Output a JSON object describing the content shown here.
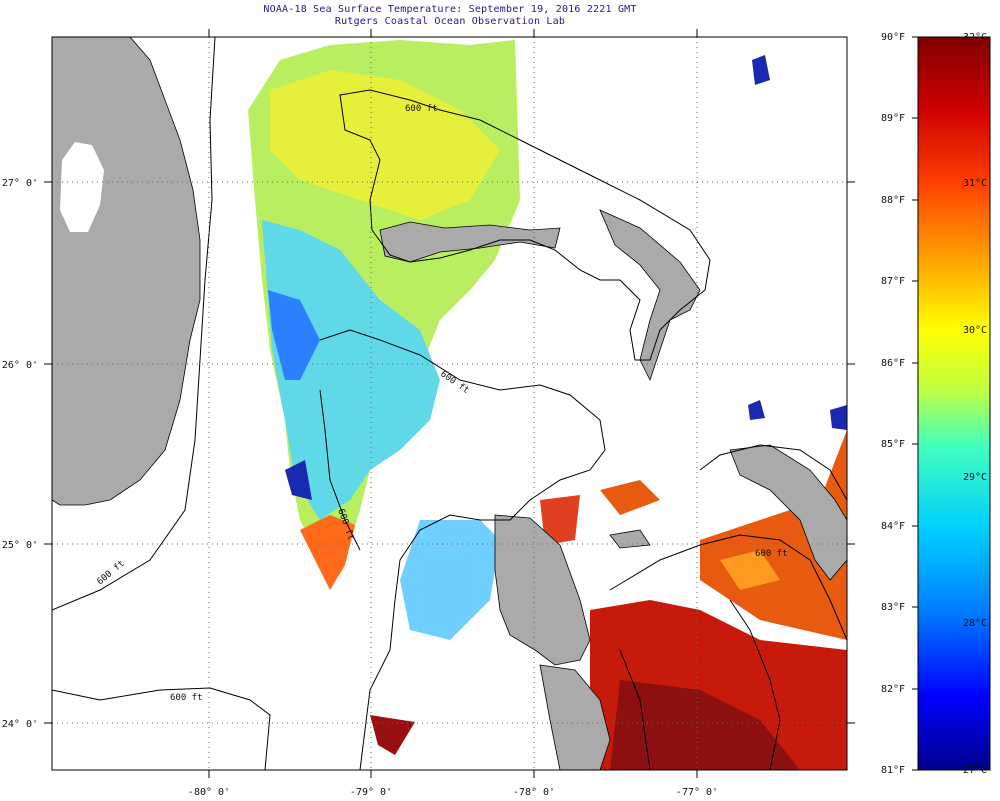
{
  "header": {
    "title": "NOAA-18 Sea Surface Temperature:  September 19, 2016 2221 GMT",
    "subtitle": "Rutgers Coastal Ocean Observation Lab"
  },
  "axes": {
    "lon_labels": [
      "-80° 0'",
      "-79° 0'",
      "-78° 0'",
      "-77° 0'"
    ],
    "lat_labels": [
      "27° 0'",
      "26° 0'",
      "25° 0'",
      "24° 0'"
    ]
  },
  "contour_labels": [
    "600 ft",
    "600 ft",
    "600 ft",
    "600 ft",
    "600 ft",
    "600 ft"
  ],
  "colorbar": {
    "fahrenheit_labels": [
      "90°F",
      "89°F",
      "88°F",
      "87°F",
      "86°F",
      "85°F",
      "84°F",
      "83°F",
      "82°F",
      "81°F"
    ],
    "celsius_labels": [
      "32°C",
      "31°C",
      "30°C",
      "29°C",
      "28°C",
      "27°C"
    ],
    "range_f": [
      81,
      90
    ],
    "range_c": [
      27,
      32
    ],
    "colors": [
      "#00008b",
      "#0000ff",
      "#0080ff",
      "#00d0ff",
      "#40ffc0",
      "#c0ff40",
      "#ffff00",
      "#ffa000",
      "#ff4000",
      "#d00000",
      "#800000"
    ]
  },
  "colors": {
    "land": "#aaaaaa",
    "coast": "#000000",
    "grid": "#666666"
  }
}
